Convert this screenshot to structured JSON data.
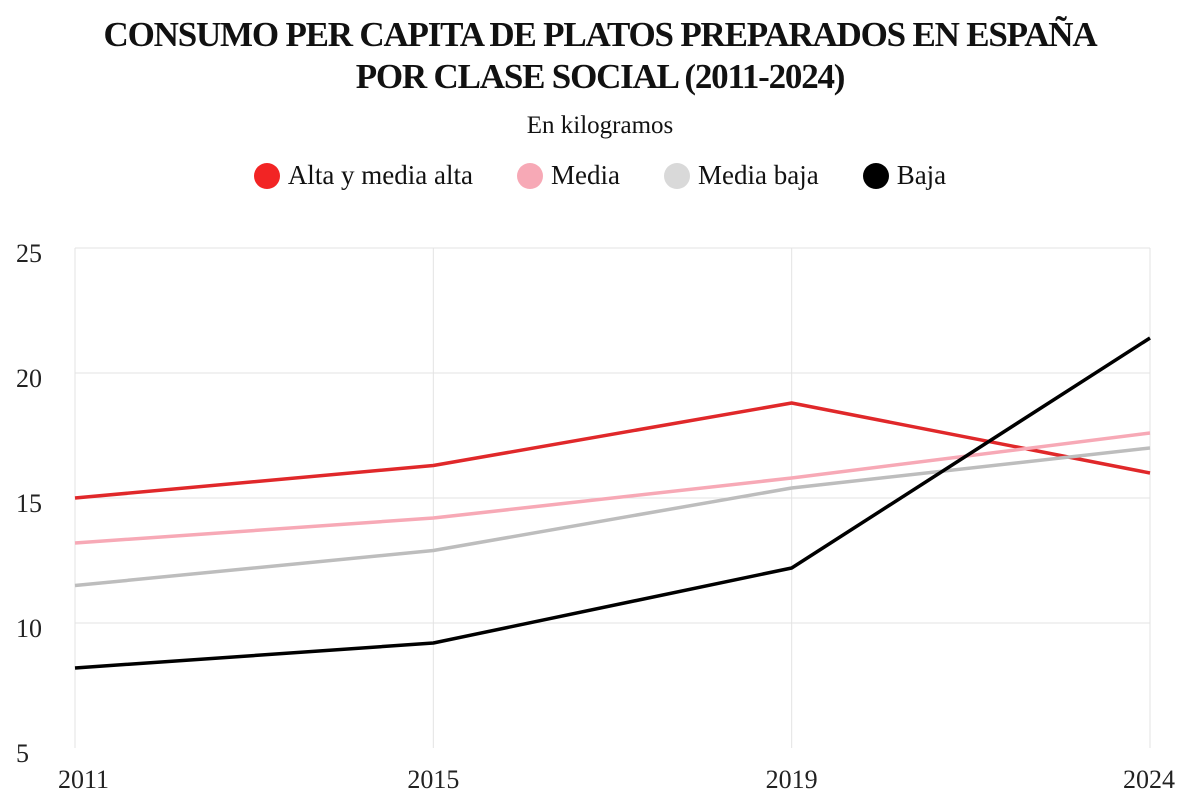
{
  "chart_data": {
    "type": "line",
    "title": [
      "CONSUMO PER CAPITA DE PLATOS PREPARADOS EN ESPAÑA",
      "POR CLASE SOCIAL (2011-2024)"
    ],
    "subtitle": "En kilogramos",
    "categories": [
      "2011",
      "2015",
      "2019",
      "2024"
    ],
    "ylim": [
      5,
      25
    ],
    "yticks": [
      5,
      10,
      15,
      20,
      25
    ],
    "grid": true,
    "legend_placement": "top-center",
    "series": [
      {
        "name": "Alta y media alta",
        "color": "#e0282a",
        "values": [
          15.0,
          16.3,
          18.8,
          16.0
        ]
      },
      {
        "name": "Media",
        "color": "#f7a9b6",
        "values": [
          13.2,
          14.2,
          15.8,
          17.6
        ]
      },
      {
        "name": "Media baja",
        "color": "#bdbdbd",
        "values": [
          11.5,
          12.9,
          15.4,
          17.0
        ]
      },
      {
        "name": "Baja",
        "color": "#000000",
        "values": [
          8.2,
          9.2,
          12.2,
          21.4
        ]
      }
    ]
  }
}
